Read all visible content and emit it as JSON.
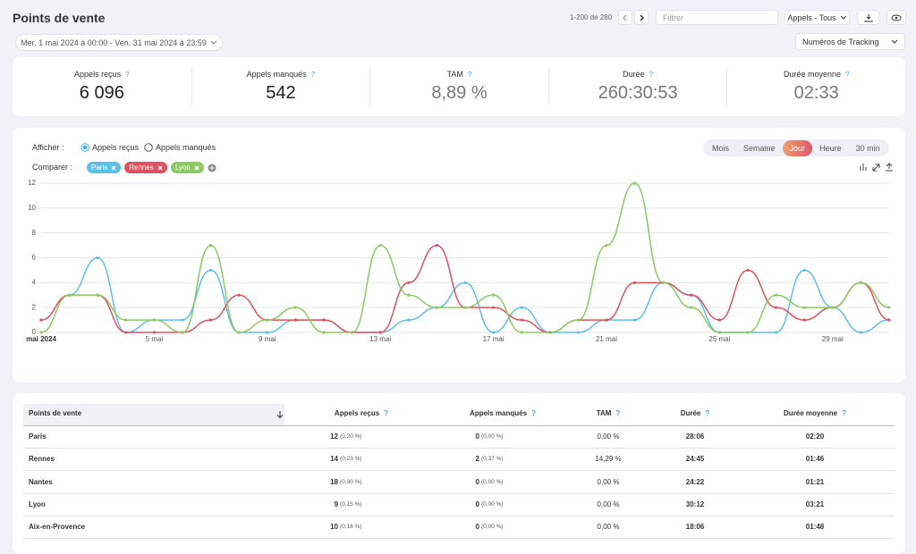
{
  "header": {
    "title": "Points de vente",
    "pagination": "1-200 de 280",
    "filter_placeholder": "Filtrer",
    "calls_filter": "Appels - Tous",
    "date_range": "Mer. 1 mai 2024 à 00:00 - Ven. 31 mai 2024 à 23:59",
    "tracking": "Numéros de Tracking"
  },
  "help_icon": "?",
  "kpis": [
    {
      "label": "Appels reçus",
      "value": "6 096"
    },
    {
      "label": "Appels manqués",
      "value": "542"
    },
    {
      "label": "TAM",
      "value": "8,89 %"
    },
    {
      "label": "Durée",
      "value": "260:30:53"
    },
    {
      "label": "Durée moyenne",
      "value": "02:33"
    }
  ],
  "controls": {
    "show_label": "Afficher :",
    "show_options": [
      "Appels reçus",
      "Appels manqués"
    ],
    "compare_label": "Comparer :",
    "periods": [
      "Mois",
      "Semaine",
      "Jour",
      "Heure",
      "30 min"
    ]
  },
  "chart_data": {
    "type": "line",
    "categories": [
      "mai 2024",
      null,
      null,
      null,
      "5 mai",
      null,
      null,
      null,
      "9 mai",
      null,
      null,
      null,
      "13 mai",
      null,
      null,
      null,
      "17 mai",
      null,
      null,
      null,
      "21 mai",
      null,
      null,
      null,
      "25 mai",
      null,
      null,
      null,
      "29 mai",
      null,
      null
    ],
    "series": [
      {
        "name": "Paris",
        "color": "#5bc0e8",
        "values": [
          1,
          3,
          6,
          0,
          1,
          1,
          5,
          0,
          0,
          1,
          1,
          0,
          0,
          1,
          2,
          4,
          0,
          2,
          0,
          0,
          1,
          1,
          4,
          3,
          0,
          0,
          0,
          5,
          2,
          0,
          1
        ]
      },
      {
        "name": "Rennes",
        "color": "#e0505e",
        "values": [
          1,
          3,
          3,
          0,
          0,
          0,
          1,
          3,
          1,
          1,
          1,
          0,
          0,
          4,
          7,
          2,
          2,
          1,
          0,
          1,
          1,
          4,
          4,
          3,
          1,
          5,
          2,
          1,
          2,
          4,
          1
        ]
      },
      {
        "name": "Lyon",
        "color": "#8cc864",
        "values": [
          0,
          3,
          3,
          1,
          1,
          0,
          7,
          0,
          1,
          2,
          0,
          0,
          7,
          3,
          2,
          2,
          3,
          0,
          0,
          1,
          7,
          12,
          4,
          2,
          0,
          0,
          3,
          2,
          2,
          4,
          2
        ]
      }
    ],
    "ylim": [
      0,
      12
    ],
    "yticks": [
      0,
      2,
      4,
      6,
      8,
      10,
      12
    ],
    "grid": true
  },
  "table": {
    "columns": [
      "Points de vente",
      "Appels reçus",
      "Appels manqués",
      "TAM",
      "Durée",
      "Durée moyenne"
    ],
    "rows": [
      [
        "Paris",
        "12",
        "(0,20 %)",
        "0",
        "(0,00 %)",
        "0,00 %",
        "28:06",
        "02:20"
      ],
      [
        "Rennes",
        "14",
        "(0,23 %)",
        "2",
        "(0,37 %)",
        "14,29 %",
        "24:45",
        "01:46"
      ],
      [
        "Nantes",
        "18",
        "(0,30 %)",
        "0",
        "(0,00 %)",
        "0,00 %",
        "24:22",
        "01:21"
      ],
      [
        "Lyon",
        "9",
        "(0,15 %)",
        "0",
        "(0,00 %)",
        "0,00 %",
        "30:12",
        "03:21"
      ],
      [
        "Aix-en-Provence",
        "10",
        "(0,16 %)",
        "0",
        "(0,00 %)",
        "0,00 %",
        "18:06",
        "01:48"
      ]
    ]
  }
}
